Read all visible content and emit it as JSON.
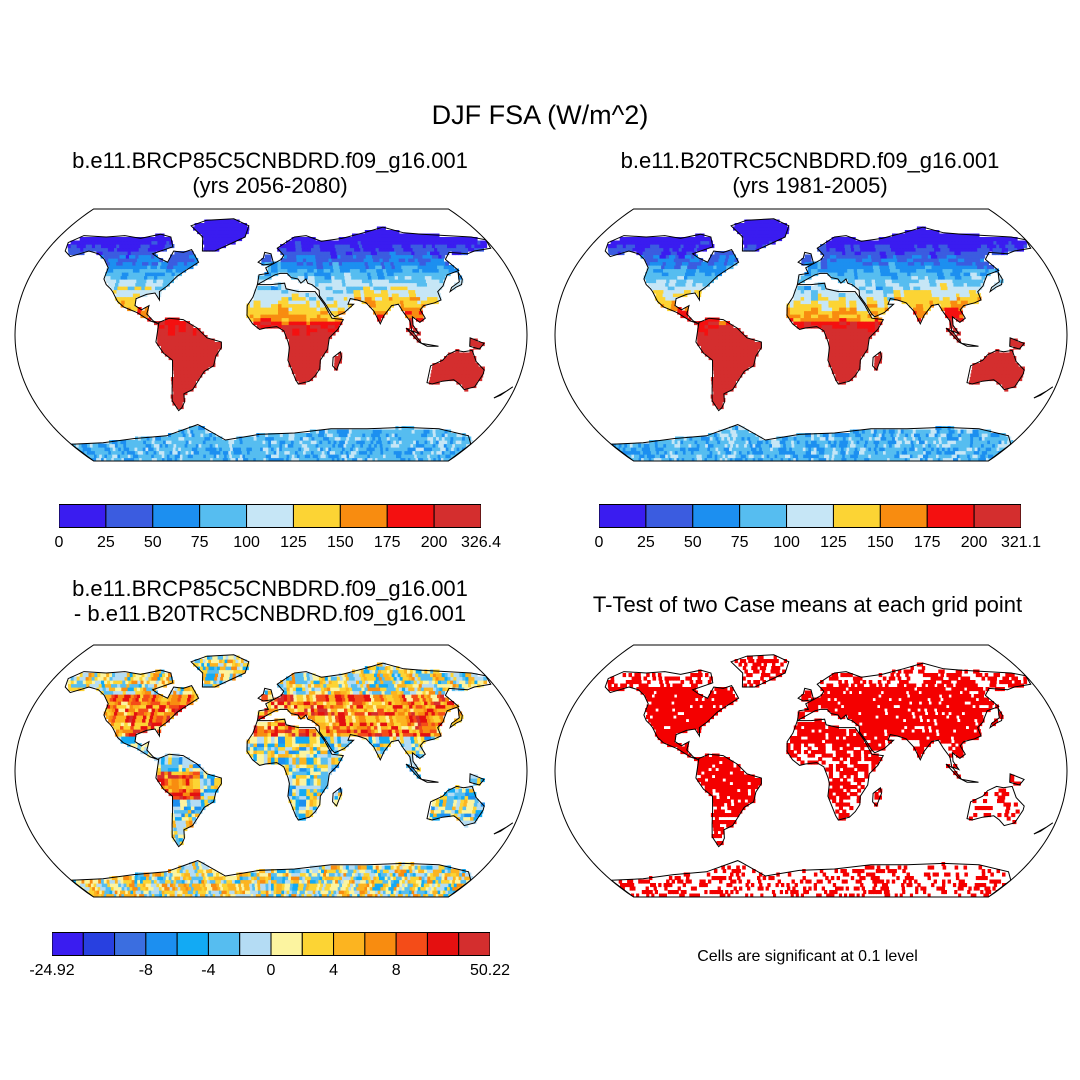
{
  "main_title": "DJF FSA (W/m^2)",
  "panels": [
    {
      "id": "future",
      "title_line1": "b.e11.BRCP85C5CNBDRD.f09_g16.001",
      "title_line2": "(yrs 2056-2080)",
      "colorbar": {
        "colors": [
          "#3a1cf0",
          "#3b5ce0",
          "#1c8ff0",
          "#56bdf0",
          "#c6e6f6",
          "#fcd434",
          "#f88c10",
          "#f41010",
          "#d42e2e"
        ],
        "tick_labels": [
          "0",
          "25",
          "50",
          "75",
          "100",
          "125",
          "150",
          "175",
          "200",
          "326.4"
        ]
      }
    },
    {
      "id": "historical",
      "title_line1": "b.e11.B20TRC5CNBDRD.f09_g16.001",
      "title_line2": "(yrs 1981-2005)",
      "colorbar": {
        "colors": [
          "#3a1cf0",
          "#3b5ce0",
          "#1c8ff0",
          "#56bdf0",
          "#c6e6f6",
          "#fcd434",
          "#f88c10",
          "#f41010",
          "#d42e2e"
        ],
        "tick_labels": [
          "0",
          "25",
          "50",
          "75",
          "100",
          "125",
          "150",
          "175",
          "200",
          "321.1"
        ]
      }
    },
    {
      "id": "difference",
      "title_line1": "b.e11.BRCP85C5CNBDRD.f09_g16.001",
      "title_line2": "- b.e11.B20TRC5CNBDRD.f09_g16.001",
      "colorbar": {
        "colors": [
          "#3a1cf0",
          "#2840e0",
          "#3b6ee0",
          "#1c8ff0",
          "#12aaf4",
          "#56bdf0",
          "#b4dcf4",
          "#fcf4a0",
          "#fcd434",
          "#fcb420",
          "#f88c10",
          "#f44c18",
          "#e41010",
          "#d42e2e"
        ],
        "tick_labels": [
          "-24.92",
          "-8",
          "-4",
          "0",
          "4",
          "8",
          "50.22"
        ]
      }
    },
    {
      "id": "ttest",
      "title_line1": "T-Test of two Case means at each grid point",
      "note": "Cells are significant at 0.1 level"
    }
  ]
}
